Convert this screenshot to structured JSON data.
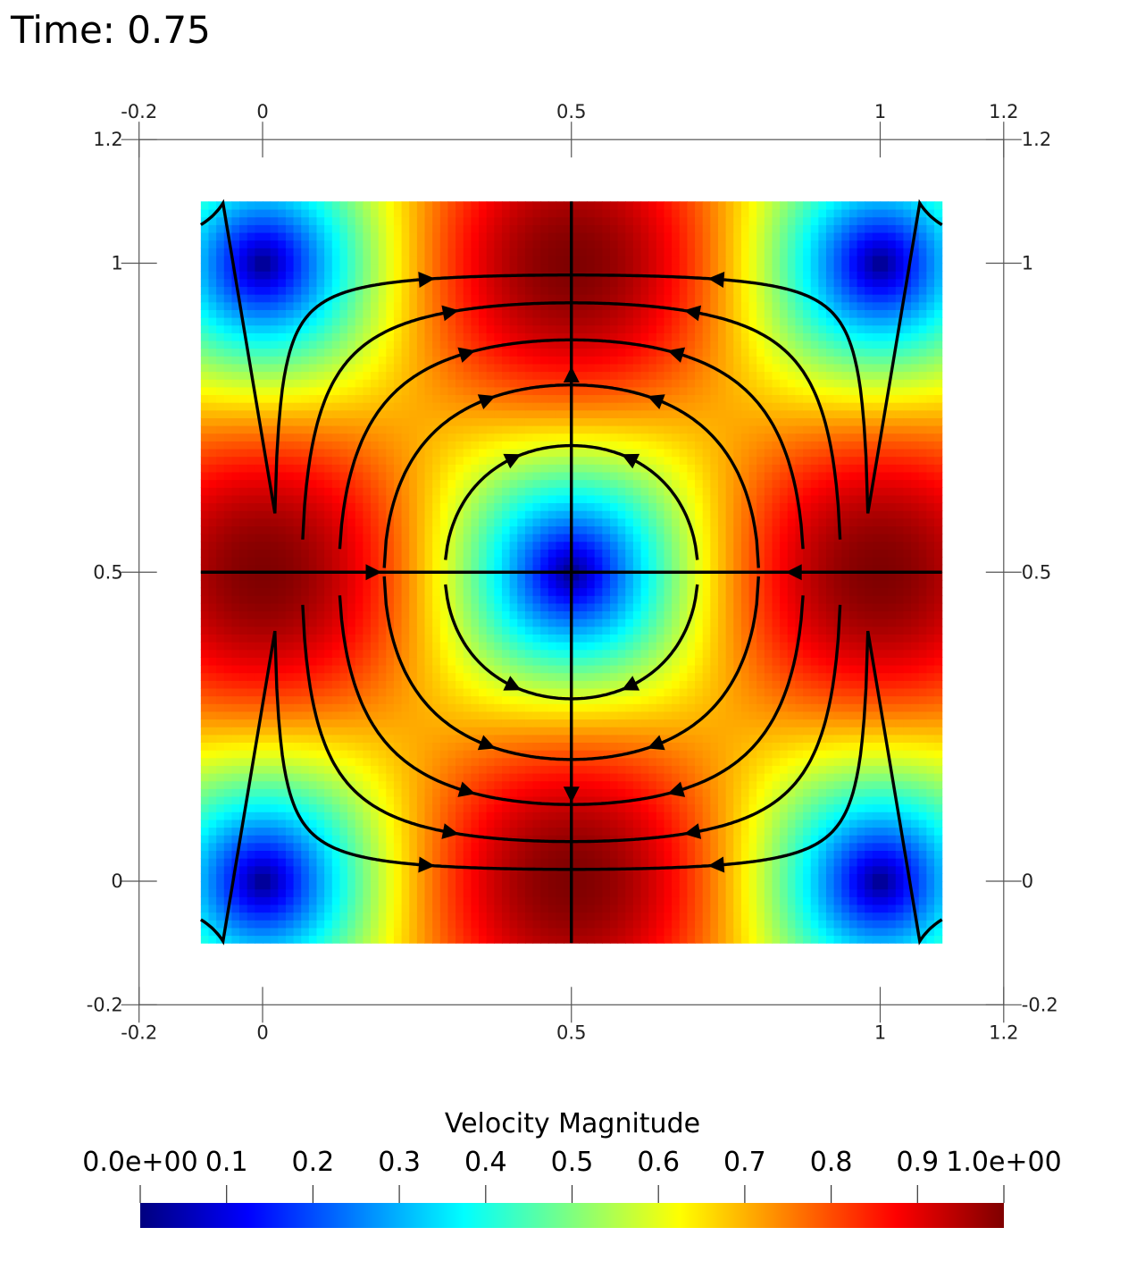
{
  "time_label": "Time: 0.75",
  "chart_data": {
    "type": "heatmap",
    "field": "Velocity Magnitude",
    "domain": {
      "x": [
        -0.1,
        1.1
      ],
      "y": [
        -0.1,
        1.1
      ]
    },
    "axes": {
      "x_range": [
        -0.2,
        1.2
      ],
      "y_range": [
        -0.2,
        1.2
      ],
      "x_ticks": [
        "-0.2",
        "0",
        "0.5",
        "1",
        "1.2"
      ],
      "y_ticks": [
        "-0.2",
        "0",
        "0.5",
        "1",
        "1.2"
      ],
      "x_tick_values": [
        -0.2,
        0,
        0.5,
        1,
        1.2
      ],
      "y_tick_values": [
        -0.2,
        0,
        0.5,
        1,
        1.2
      ]
    },
    "stagnation_point": [
      0.5,
      0.5
    ],
    "streamline_color": "#000000",
    "colorbar": {
      "title": "Velocity Magnitude",
      "range": [
        0,
        1
      ],
      "labels": [
        "0.0e+00",
        "0.1",
        "0.2",
        "0.3",
        "0.4",
        "0.5",
        "0.6",
        "0.7",
        "0.8",
        "0.9",
        "1.0e+00"
      ],
      "label_values": [
        0,
        0.1,
        0.2,
        0.3,
        0.4,
        0.5,
        0.6,
        0.7,
        0.8,
        0.9,
        1.0
      ],
      "colormap": "jet",
      "colors": [
        "#00007f",
        "#0000ff",
        "#007fff",
        "#00ffff",
        "#7fff7f",
        "#ffff00",
        "#ff7f00",
        "#ff0000",
        "#7f0000"
      ]
    }
  }
}
